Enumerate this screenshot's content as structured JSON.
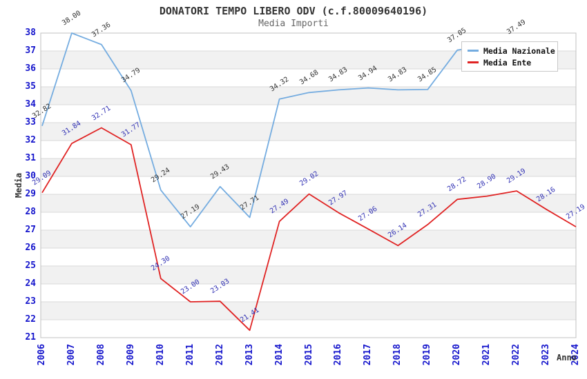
{
  "title": "DONATORI TEMPO LIBERO ODV (c.f.80009640196)",
  "subtitle": "Media Importi",
  "chart_data": {
    "type": "line",
    "title": "DONATORI TEMPO LIBERO ODV (c.f.80009640196)",
    "subtitle": "Media Importi",
    "xlabel": "Anno",
    "ylabel": "Media",
    "ylim": [
      21,
      38
    ],
    "grid": "horizontal lines each integer, alternating gray bands on even intervals",
    "legend_position": "top-right",
    "x": [
      2006,
      2007,
      2008,
      2009,
      2010,
      2011,
      2012,
      2013,
      2014,
      2015,
      2016,
      2017,
      2018,
      2019,
      2020,
      2021,
      2022,
      2023,
      2024
    ],
    "series": [
      {
        "name": "Media Nazionale",
        "color": "#74ace0",
        "label_color": "#333333",
        "values": [
          32.82,
          38.0,
          37.36,
          34.79,
          29.24,
          27.19,
          29.43,
          27.71,
          34.32,
          34.68,
          34.83,
          34.94,
          34.83,
          34.85,
          37.05,
          null,
          37.49,
          null,
          null
        ]
      },
      {
        "name": "Media Ente",
        "color": "#e02222",
        "label_color": "#3232b4",
        "values": [
          29.09,
          31.84,
          32.71,
          31.77,
          24.3,
          23.0,
          23.03,
          21.41,
          27.49,
          29.02,
          27.97,
          27.06,
          26.14,
          27.31,
          28.72,
          28.9,
          29.19,
          28.16,
          27.19
        ]
      }
    ]
  },
  "colors": {
    "tick_label": "#1515cc",
    "band": "#f1f1f1",
    "grid": "#d9d9d9",
    "border": "#c0c0c0",
    "title": "#333333",
    "subtitle": "#666666"
  }
}
